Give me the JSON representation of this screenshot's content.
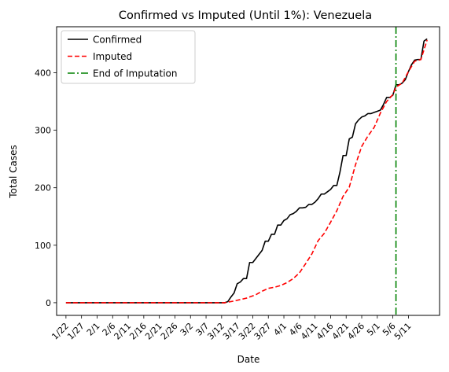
{
  "chart_data": {
    "type": "line",
    "title": "Confirmed vs Imputed (Until 1%): Venezuela",
    "xlabel": "Date",
    "ylabel": "Total Cases",
    "ylim": [
      -22,
      480
    ],
    "xlim_days": [
      -3,
      120
    ],
    "yticks": [
      0,
      100,
      200,
      300,
      400
    ],
    "xtick_labels": [
      "1/22",
      "1/27",
      "2/1",
      "2/6",
      "2/11",
      "2/16",
      "2/21",
      "2/26",
      "3/2",
      "3/7",
      "3/12",
      "3/17",
      "3/22",
      "3/27",
      "4/1",
      "4/6",
      "4/11",
      "4/16",
      "4/21",
      "4/26",
      "5/1",
      "5/6",
      "5/11"
    ],
    "grid": false,
    "legend_position": "top-left",
    "series": [
      {
        "name": "Confirmed",
        "color": "#000000",
        "style": "solid",
        "points": [
          [
            0,
            0
          ],
          [
            51,
            0
          ],
          [
            52,
            2
          ],
          [
            53,
            10
          ],
          [
            54,
            17
          ],
          [
            55,
            33
          ],
          [
            56,
            36
          ],
          [
            57,
            42
          ],
          [
            58,
            42
          ],
          [
            59,
            70
          ],
          [
            60,
            70
          ],
          [
            61,
            77
          ],
          [
            62,
            84
          ],
          [
            63,
            91
          ],
          [
            64,
            107
          ],
          [
            65,
            107
          ],
          [
            66,
            119
          ],
          [
            67,
            119
          ],
          [
            68,
            135
          ],
          [
            69,
            135
          ],
          [
            70,
            143
          ],
          [
            71,
            146
          ],
          [
            72,
            153
          ],
          [
            73,
            155
          ],
          [
            74,
            159
          ],
          [
            75,
            165
          ],
          [
            76,
            165
          ],
          [
            77,
            166
          ],
          [
            78,
            171
          ],
          [
            79,
            171
          ],
          [
            80,
            175
          ],
          [
            81,
            181
          ],
          [
            82,
            189
          ],
          [
            83,
            189
          ],
          [
            84,
            193
          ],
          [
            85,
            197
          ],
          [
            86,
            204
          ],
          [
            87,
            204
          ],
          [
            88,
            227
          ],
          [
            89,
            256
          ],
          [
            90,
            256
          ],
          [
            91,
            285
          ],
          [
            92,
            288
          ],
          [
            93,
            311
          ],
          [
            94,
            318
          ],
          [
            95,
            323
          ],
          [
            96,
            325
          ],
          [
            97,
            329
          ],
          [
            98,
            329
          ],
          [
            99,
            331
          ],
          [
            100,
            333
          ],
          [
            101,
            335
          ],
          [
            102,
            345
          ],
          [
            103,
            357
          ],
          [
            104,
            357
          ],
          [
            105,
            361
          ],
          [
            106,
            379
          ],
          [
            107,
            379
          ],
          [
            108,
            382
          ],
          [
            109,
            388
          ],
          [
            110,
            402
          ],
          [
            111,
            414
          ],
          [
            112,
            422
          ],
          [
            113,
            423
          ],
          [
            114,
            423
          ],
          [
            115,
            455
          ],
          [
            116,
            459
          ]
        ]
      },
      {
        "name": "Imputed",
        "color": "#ff0000",
        "style": "dashed",
        "points": [
          [
            0,
            0
          ],
          [
            51,
            0
          ],
          [
            54,
            3
          ],
          [
            58,
            8
          ],
          [
            61,
            14
          ],
          [
            63,
            20
          ],
          [
            65,
            25
          ],
          [
            67,
            27
          ],
          [
            69,
            30
          ],
          [
            71,
            35
          ],
          [
            73,
            42
          ],
          [
            75,
            52
          ],
          [
            77,
            68
          ],
          [
            79,
            85
          ],
          [
            81,
            108
          ],
          [
            83,
            121
          ],
          [
            85,
            140
          ],
          [
            87,
            160
          ],
          [
            89,
            185
          ],
          [
            91,
            201
          ],
          [
            93,
            240
          ],
          [
            95,
            272
          ],
          [
            97,
            290
          ],
          [
            99,
            305
          ],
          [
            101,
            330
          ],
          [
            103,
            350
          ],
          [
            105,
            362
          ],
          [
            106,
            375
          ],
          [
            108,
            382
          ],
          [
            110,
            402
          ],
          [
            112,
            420
          ],
          [
            114,
            423
          ],
          [
            116,
            457
          ]
        ]
      },
      {
        "name": "End of Imputation",
        "color": "#008000",
        "style": "dashdot",
        "vertical_x": 106
      }
    ]
  }
}
